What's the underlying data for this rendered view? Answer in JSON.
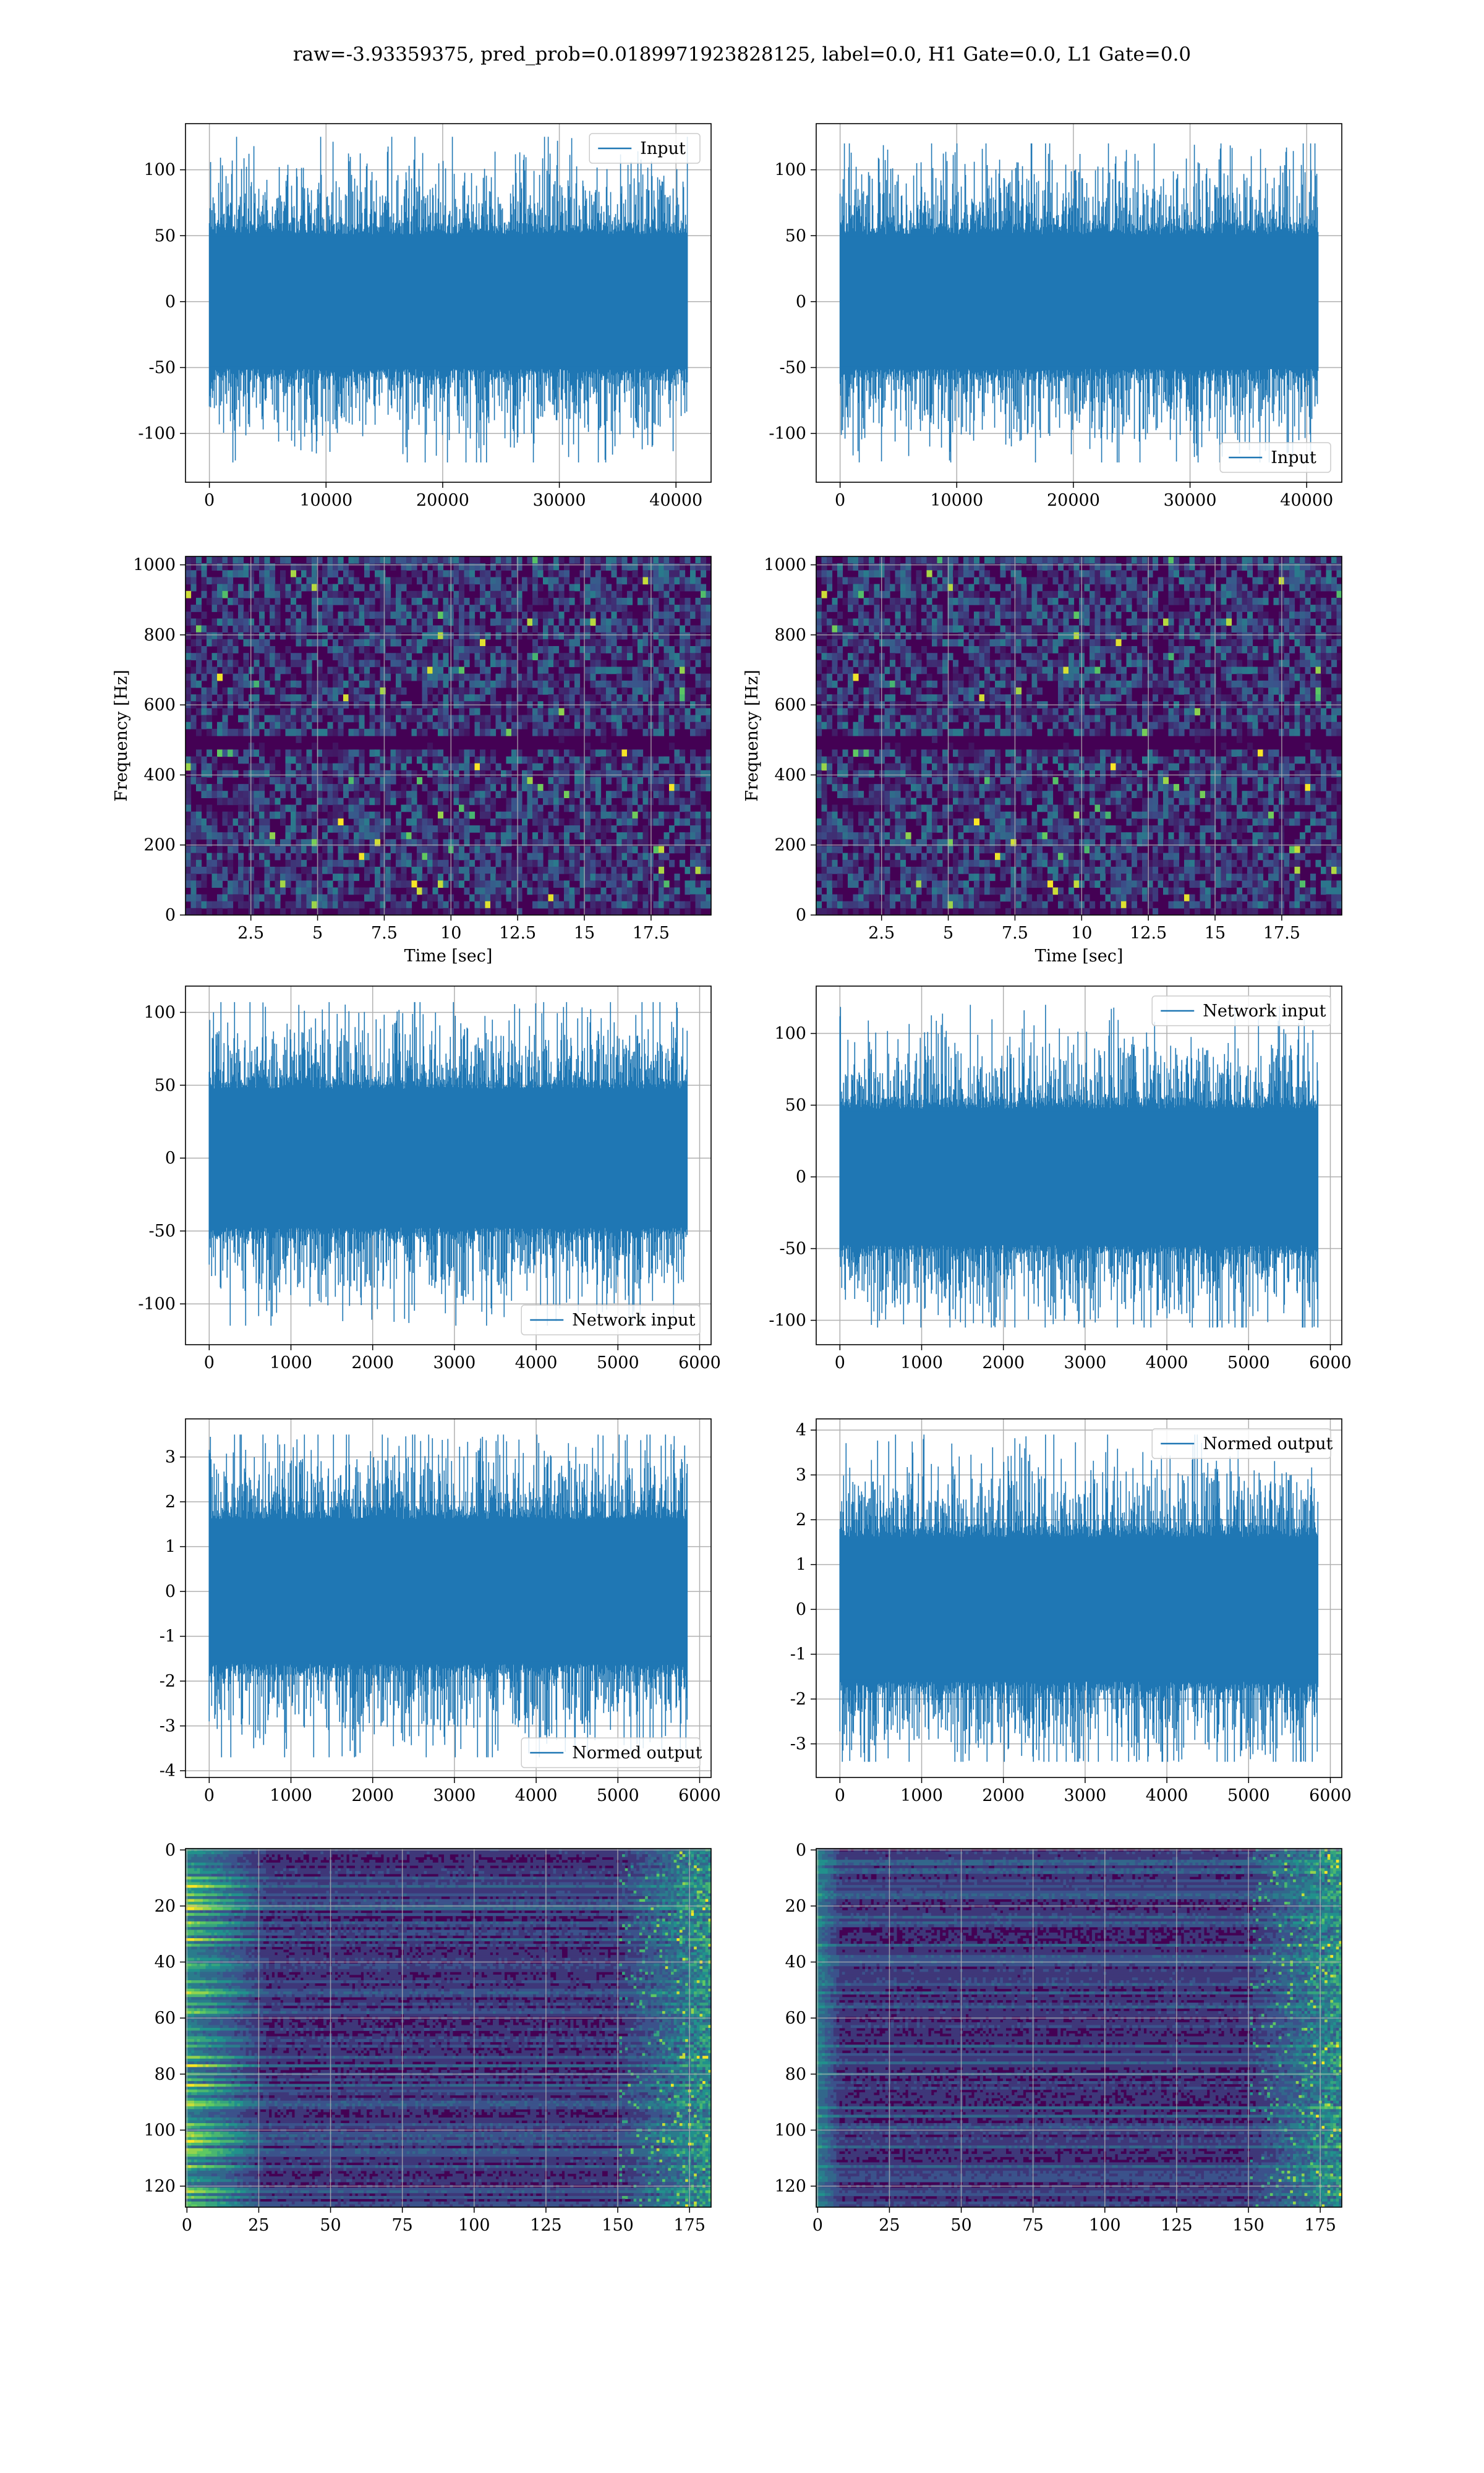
{
  "figure_title": "raw=-3.93359375, pred_prob=0.0189971923828125, label=0.0, H1 Gate=0.0, L1 Gate=0.0",
  "colors": {
    "line": "#1f77b4",
    "grid": "#b0b0b0",
    "viridis_low": "#440154",
    "viridis_high": "#fde725"
  },
  "chart_data": [
    {
      "id": "h1-input",
      "type": "line",
      "row": 1,
      "col": 1,
      "series": [
        {
          "name": "Input",
          "kind": "noise",
          "n_samples": 40960,
          "std": 30,
          "min": -122,
          "max": 125
        }
      ],
      "x_ticks": [
        0,
        10000,
        20000,
        30000,
        40000
      ],
      "y_ticks": [
        -100,
        -50,
        0,
        50,
        100
      ],
      "xlim": [
        -2048,
        43008
      ],
      "ylim": [
        -137,
        135
      ],
      "legend": "top-right",
      "grid": true,
      "xlabel": "",
      "ylabel": ""
    },
    {
      "id": "l1-input",
      "type": "line",
      "row": 1,
      "col": 2,
      "series": [
        {
          "name": "Input",
          "kind": "noise",
          "n_samples": 40960,
          "std": 30,
          "min": -122,
          "max": 120
        }
      ],
      "x_ticks": [
        0,
        10000,
        20000,
        30000,
        40000
      ],
      "y_ticks": [
        -100,
        -50,
        0,
        50,
        100
      ],
      "xlim": [
        -2048,
        43008
      ],
      "ylim": [
        -137,
        135
      ],
      "legend": "bottom-right",
      "grid": true,
      "xlabel": "",
      "ylabel": ""
    },
    {
      "id": "h1-spectrogram",
      "type": "heatmap",
      "row": 2,
      "col": 1,
      "x_ticks": [
        2.5,
        5.0,
        7.5,
        10.0,
        12.5,
        15.0,
        17.5
      ],
      "y_ticks": [
        0,
        200,
        400,
        600,
        800,
        1000
      ],
      "xlim": [
        0.05,
        19.75
      ],
      "ylim": [
        0,
        1024
      ],
      "xlabel": "Time [sec]",
      "ylabel": "Frequency [Hz]",
      "colormap": "viridis",
      "dark_band_hz": 500,
      "grid": true
    },
    {
      "id": "l1-spectrogram",
      "type": "heatmap",
      "row": 2,
      "col": 2,
      "x_ticks": [
        2.5,
        5.0,
        7.5,
        10.0,
        12.5,
        15.0,
        17.5
      ],
      "y_ticks": [
        0,
        200,
        400,
        600,
        800,
        1000
      ],
      "xlim": [
        0.05,
        19.75
      ],
      "ylim": [
        0,
        1024
      ],
      "xlabel": "Time [sec]",
      "ylabel": "Frequency [Hz]",
      "colormap": "viridis",
      "dark_band_hz": 500,
      "grid": true
    },
    {
      "id": "h1-network-input",
      "type": "line",
      "row": 3,
      "col": 1,
      "series": [
        {
          "name": "Network input",
          "kind": "noise",
          "n_samples": 5850,
          "std": 28,
          "min": -115,
          "max": 107
        }
      ],
      "x_ticks": [
        0,
        1000,
        2000,
        3000,
        4000,
        5000,
        6000
      ],
      "y_ticks": [
        -100,
        -50,
        0,
        50,
        100
      ],
      "xlim": [
        -290,
        6140
      ],
      "ylim": [
        -128,
        118
      ],
      "legend": "bottom-right",
      "grid": true,
      "xlabel": "",
      "ylabel": ""
    },
    {
      "id": "l1-network-input",
      "type": "line",
      "row": 3,
      "col": 2,
      "series": [
        {
          "name": "Network input",
          "kind": "noise",
          "n_samples": 5850,
          "std": 28,
          "min": -105,
          "max": 120
        }
      ],
      "x_ticks": [
        0,
        1000,
        2000,
        3000,
        4000,
        5000,
        6000
      ],
      "y_ticks": [
        -100,
        -50,
        0,
        50,
        100
      ],
      "xlim": [
        -290,
        6140
      ],
      "ylim": [
        -117,
        133
      ],
      "legend": "top-right",
      "grid": true,
      "xlabel": "",
      "ylabel": ""
    },
    {
      "id": "h1-normed-output",
      "type": "line",
      "row": 4,
      "col": 1,
      "series": [
        {
          "name": "Normed output",
          "kind": "noise",
          "n_samples": 5850,
          "std": 0.95,
          "min": -3.7,
          "max": 3.5
        }
      ],
      "x_ticks": [
        0,
        1000,
        2000,
        3000,
        4000,
        5000,
        6000
      ],
      "y_ticks": [
        -4,
        -3,
        -2,
        -1,
        0,
        1,
        2,
        3
      ],
      "xlim": [
        -290,
        6140
      ],
      "ylim": [
        -4.15,
        3.85
      ],
      "legend": "bottom-right",
      "grid": true,
      "xlabel": "",
      "ylabel": ""
    },
    {
      "id": "l1-normed-output",
      "type": "line",
      "row": 4,
      "col": 2,
      "series": [
        {
          "name": "Normed output",
          "kind": "noise",
          "n_samples": 5850,
          "std": 0.95,
          "min": -3.4,
          "max": 3.9
        }
      ],
      "x_ticks": [
        0,
        1000,
        2000,
        3000,
        4000,
        5000,
        6000
      ],
      "y_ticks": [
        -3,
        -2,
        -1,
        0,
        1,
        2,
        3,
        4
      ],
      "xlim": [
        -290,
        6140
      ],
      "ylim": [
        -3.75,
        4.25
      ],
      "legend": "top-right",
      "grid": true,
      "xlabel": "",
      "ylabel": ""
    },
    {
      "id": "h1-feature-map",
      "type": "heatmap",
      "row": 5,
      "col": 1,
      "x_ticks": [
        0,
        25,
        50,
        75,
        100,
        125,
        150,
        175
      ],
      "y_ticks": [
        0,
        20,
        40,
        60,
        80,
        100,
        120
      ],
      "xlim": [
        -0.5,
        182.5
      ],
      "ylim": [
        127.5,
        -0.5
      ],
      "y_inverted": true,
      "colormap": "viridis",
      "grid": true,
      "xlabel": "",
      "ylabel": "",
      "bright_regions": "left columns 0-25 and right columns 150-182"
    },
    {
      "id": "l1-feature-map",
      "type": "heatmap",
      "row": 5,
      "col": 2,
      "x_ticks": [
        0,
        25,
        50,
        75,
        100,
        125,
        150,
        175
      ],
      "y_ticks": [
        0,
        20,
        40,
        60,
        80,
        100,
        120
      ],
      "xlim": [
        -0.5,
        182.5
      ],
      "ylim": [
        127.5,
        -0.5
      ],
      "y_inverted": true,
      "colormap": "viridis",
      "grid": true,
      "xlabel": "",
      "ylabel": "",
      "bright_regions": "right columns 150-182"
    }
  ]
}
